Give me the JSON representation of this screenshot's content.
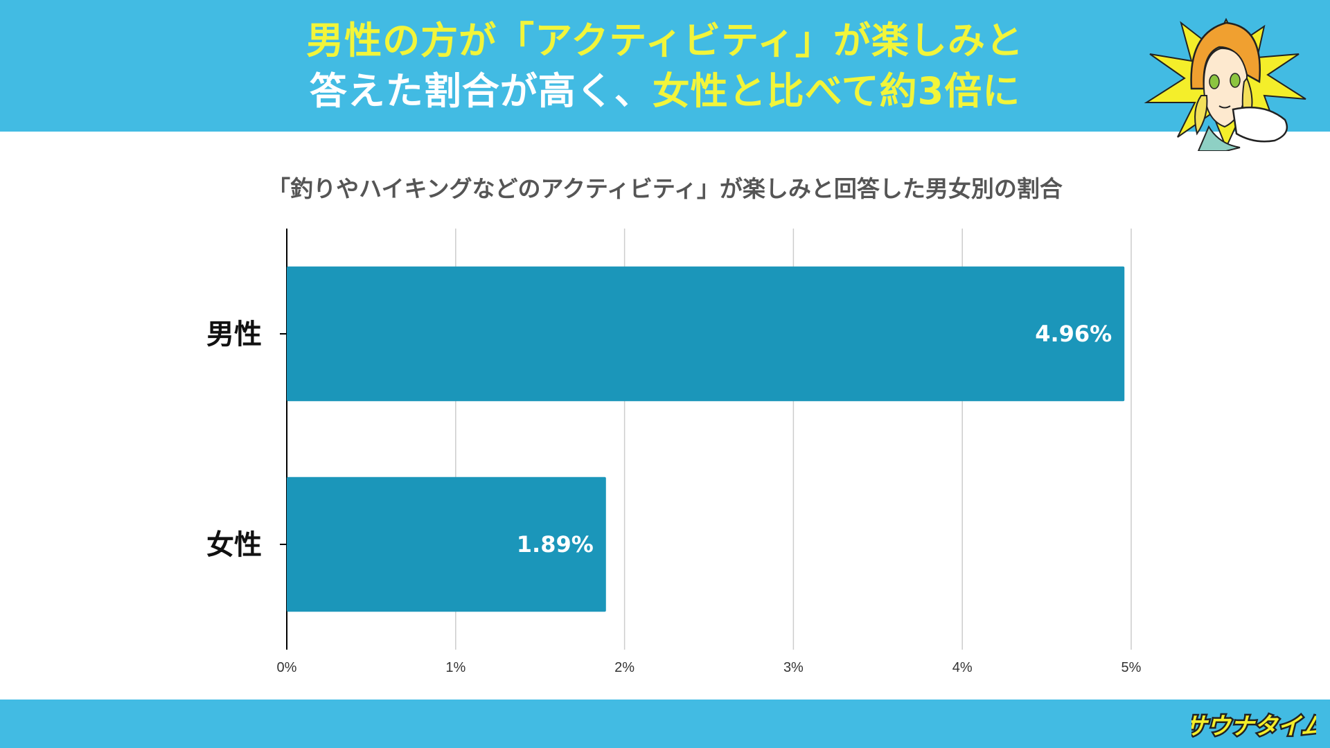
{
  "header": {
    "line1": [
      {
        "text": "男性の方が「アクティビティ」が楽しみと",
        "color": "#f2f53a"
      }
    ],
    "line2": [
      {
        "text": "答えた割合が高く、",
        "color": "#ffffff"
      },
      {
        "text": "女性と比べて約3倍に",
        "color": "#f2f53a"
      }
    ]
  },
  "colors": {
    "header_bg": "#42bbe3",
    "bar": "#1b96ba",
    "grid": "#cccccc",
    "axis": "#000000"
  },
  "logo_text": "サウナタイム",
  "chart_data": {
    "type": "bar",
    "orientation": "horizontal",
    "title": "「釣りやハイキングなどのアクティビティ」が楽しみと回答した男女別の割合",
    "categories": [
      "男性",
      "女性"
    ],
    "values": [
      4.96,
      1.89
    ],
    "data_labels": [
      "4.96%",
      "1.89%"
    ],
    "xlim": [
      0,
      5
    ],
    "xticks": [
      0,
      1,
      2,
      3,
      4,
      5
    ],
    "xtick_labels": [
      "0%",
      "1%",
      "2%",
      "3%",
      "4%",
      "5%"
    ],
    "grid": true,
    "legend": "none"
  }
}
